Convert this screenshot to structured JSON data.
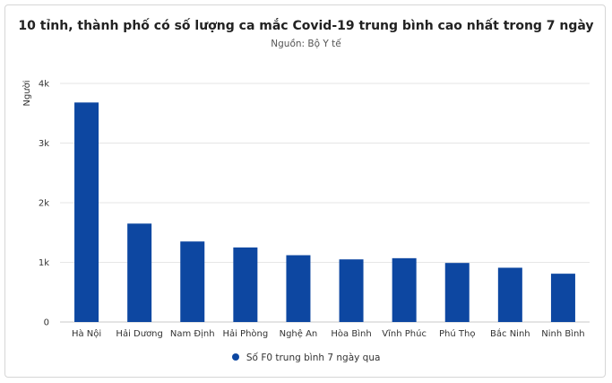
{
  "chart_data": {
    "type": "bar",
    "title": "10 tỉnh, thành phố có số lượng ca mắc Covid-19 trung bình cao nhất trong 7 ngày",
    "subtitle": "Nguồn: Bộ Y tế",
    "ylabel": "Người",
    "xlabel": "",
    "categories": [
      "Hà Nội",
      "Hải Dương",
      "Nam Định",
      "Hải Phòng",
      "Nghệ An",
      "Hòa Bình",
      "Vĩnh Phúc",
      "Phú Thọ",
      "Bắc Ninh",
      "Ninh Bình"
    ],
    "series": [
      {
        "name": "Số F0 trung bình 7 ngày qua",
        "values": [
          3680,
          1650,
          1350,
          1250,
          1120,
          1050,
          1070,
          990,
          910,
          810
        ],
        "color": "#0d47a1"
      }
    ],
    "ylim": [
      0,
      4000
    ],
    "yticks": [
      0,
      1000,
      2000,
      3000,
      4000
    ],
    "ytick_labels": [
      "0",
      "1k",
      "2k",
      "3k",
      "4k"
    ],
    "grid": true,
    "legend_position": "bottom"
  }
}
